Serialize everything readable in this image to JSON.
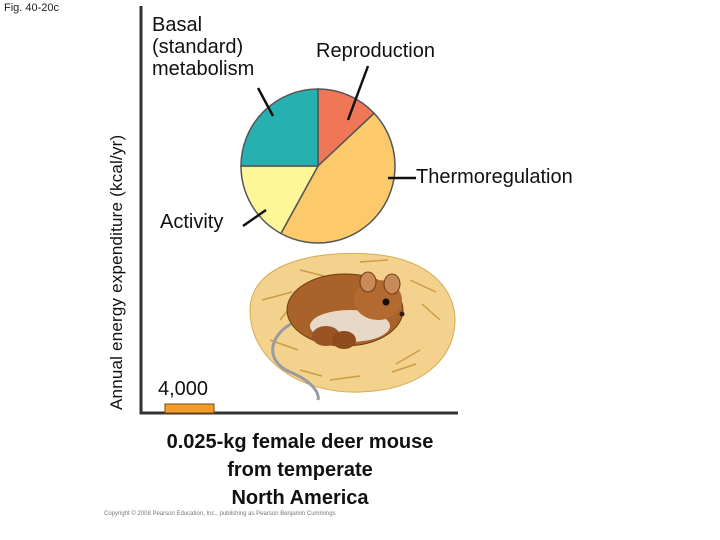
{
  "figure": {
    "label": "Fig. 40-20c",
    "copyright": "Copyright © 2008 Pearson Education, Inc., publishing as Pearson Benjamin Cummings"
  },
  "chart_data": {
    "type": "bar",
    "ylabel": "Annual energy expenditure (kcal/yr)",
    "xlabel": "",
    "categories": [
      "0.025-kg female deer mouse from temperate North America"
    ],
    "category_lines": [
      "0.025-kg female deer mouse",
      "from temperate",
      "North America"
    ],
    "values": [
      4000
    ],
    "value_label": "4,000",
    "bar_color": "#f39c2a",
    "breakdown": {
      "type": "pie",
      "slices": [
        {
          "label": "Reproduction",
          "fraction": 0.13,
          "color": "#f07658"
        },
        {
          "label": "Thermoregulation",
          "fraction": 0.45,
          "color": "#fcca6a"
        },
        {
          "label": "Activity",
          "fraction": 0.17,
          "color": "#fdf79a"
        },
        {
          "label": "Basal (standard) metabolism",
          "fraction": 0.25,
          "color": "#26b0b0"
        }
      ],
      "basal_label_lines": [
        "Basal",
        "(standard)",
        "metabolism"
      ]
    }
  }
}
